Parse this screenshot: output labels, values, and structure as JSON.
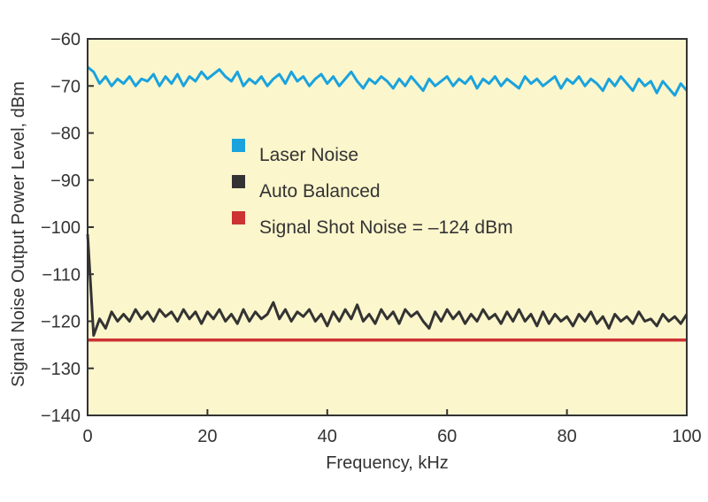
{
  "chart_data": {
    "type": "line",
    "title": "",
    "xlabel": "Frequency, kHz",
    "ylabel": "Signal Noise Output Power Level, dBm",
    "xlim": [
      0,
      100
    ],
    "ylim": [
      -140,
      -60
    ],
    "x_ticks": [
      0,
      20,
      40,
      60,
      80,
      100
    ],
    "x_tick_labels": [
      "0",
      "20",
      "40",
      "60",
      "80",
      "100"
    ],
    "y_ticks": [
      -60,
      -70,
      -80,
      -90,
      -100,
      -110,
      -120,
      -130,
      -140
    ],
    "y_tick_labels": [
      "−60",
      "−70",
      "−80",
      "−90",
      "−100",
      "−110",
      "−120",
      "−130",
      "−140"
    ],
    "grid": false,
    "background_color": "#fcf6cc",
    "legend_placement": "center",
    "series": [
      {
        "name": "Laser Noise",
        "color": "#1aa3dd",
        "x": [
          0,
          1,
          2,
          3,
          4,
          5,
          6,
          7,
          8,
          9,
          10,
          11,
          12,
          13,
          14,
          15,
          16,
          17,
          18,
          19,
          20,
          21,
          22,
          23,
          24,
          25,
          26,
          27,
          28,
          29,
          30,
          31,
          32,
          33,
          34,
          35,
          36,
          37,
          38,
          39,
          40,
          41,
          42,
          43,
          44,
          45,
          46,
          47,
          48,
          49,
          50,
          51,
          52,
          53,
          54,
          55,
          56,
          57,
          58,
          59,
          60,
          61,
          62,
          63,
          64,
          65,
          66,
          67,
          68,
          69,
          70,
          71,
          72,
          73,
          74,
          75,
          76,
          77,
          78,
          79,
          80,
          81,
          82,
          83,
          84,
          85,
          86,
          87,
          88,
          89,
          90,
          91,
          92,
          93,
          94,
          95,
          96,
          97,
          98,
          99,
          100
        ],
        "y": [
          -66,
          -67,
          -69.5,
          -68,
          -70,
          -68.5,
          -69.5,
          -68,
          -70,
          -68.5,
          -69,
          -67.5,
          -70,
          -68,
          -69.5,
          -67.5,
          -70,
          -68,
          -69,
          -67,
          -68.5,
          -67.5,
          -66.5,
          -68,
          -69,
          -67,
          -70,
          -68.5,
          -69.5,
          -68,
          -70,
          -68.5,
          -67.5,
          -69.5,
          -67,
          -69,
          -68,
          -70,
          -68.5,
          -67.5,
          -69.5,
          -68,
          -70,
          -68.5,
          -67,
          -69,
          -70.5,
          -68.5,
          -69.5,
          -68,
          -69,
          -70.5,
          -68.5,
          -70,
          -68,
          -69.5,
          -71,
          -68.5,
          -70,
          -69,
          -68,
          -70,
          -68.5,
          -69.5,
          -68,
          -70.5,
          -68.5,
          -69.5,
          -68,
          -70,
          -68.5,
          -69.5,
          -70.5,
          -68,
          -69.5,
          -68.5,
          -70,
          -69,
          -68,
          -70.5,
          -68.5,
          -69.5,
          -68,
          -70,
          -68.5,
          -69.5,
          -71,
          -68.5,
          -70,
          -68,
          -69.5,
          -71,
          -68.5,
          -70,
          -69,
          -71.5,
          -69,
          -70.5,
          -72,
          -69.5,
          -71
        ]
      },
      {
        "name": "Auto Balanced",
        "color": "#333333",
        "x": [
          0,
          1,
          2,
          3,
          4,
          5,
          6,
          7,
          8,
          9,
          10,
          11,
          12,
          13,
          14,
          15,
          16,
          17,
          18,
          19,
          20,
          21,
          22,
          23,
          24,
          25,
          26,
          27,
          28,
          29,
          30,
          31,
          32,
          33,
          34,
          35,
          36,
          37,
          38,
          39,
          40,
          41,
          42,
          43,
          44,
          45,
          46,
          47,
          48,
          49,
          50,
          51,
          52,
          53,
          54,
          55,
          56,
          57,
          58,
          59,
          60,
          61,
          62,
          63,
          64,
          65,
          66,
          67,
          68,
          69,
          70,
          71,
          72,
          73,
          74,
          75,
          76,
          77,
          78,
          79,
          80,
          81,
          82,
          83,
          84,
          85,
          86,
          87,
          88,
          89,
          90,
          91,
          92,
          93,
          94,
          95,
          96,
          97,
          98,
          99,
          100
        ],
        "y": [
          -101.5,
          -123,
          -119.5,
          -121.5,
          -118,
          -120,
          -118.5,
          -120,
          -117.5,
          -119.5,
          -118,
          -120,
          -117.5,
          -119,
          -118,
          -120,
          -117.5,
          -119.5,
          -118,
          -120.5,
          -118,
          -119.5,
          -117.5,
          -120,
          -118.5,
          -120.5,
          -117.5,
          -120,
          -118,
          -119.5,
          -118.5,
          -116,
          -119.5,
          -117.5,
          -120,
          -118,
          -119,
          -117.5,
          -120,
          -118.5,
          -121,
          -118,
          -120,
          -117.5,
          -119.5,
          -116.5,
          -120,
          -118.5,
          -120.5,
          -117.5,
          -119.5,
          -118,
          -120.5,
          -117.5,
          -119,
          -118,
          -120,
          -121.5,
          -118,
          -120,
          -117.5,
          -119.5,
          -118,
          -120.5,
          -118.5,
          -120,
          -117.5,
          -119.5,
          -118.5,
          -120.5,
          -118,
          -120,
          -117.5,
          -120,
          -118.5,
          -121,
          -118,
          -120.5,
          -118.5,
          -120,
          -119,
          -121,
          -118.5,
          -120,
          -118,
          -120.5,
          -119,
          -121.5,
          -118.5,
          -120,
          -119,
          -120.5,
          -118,
          -120,
          -119.5,
          -121,
          -118.5,
          -120,
          -119,
          -120.5,
          -118.5
        ]
      },
      {
        "name": "Signal Shot Noise = –124 dBm",
        "color": "#cc3333",
        "x": [
          0,
          100
        ],
        "y": [
          -124,
          -124
        ]
      }
    ]
  }
}
